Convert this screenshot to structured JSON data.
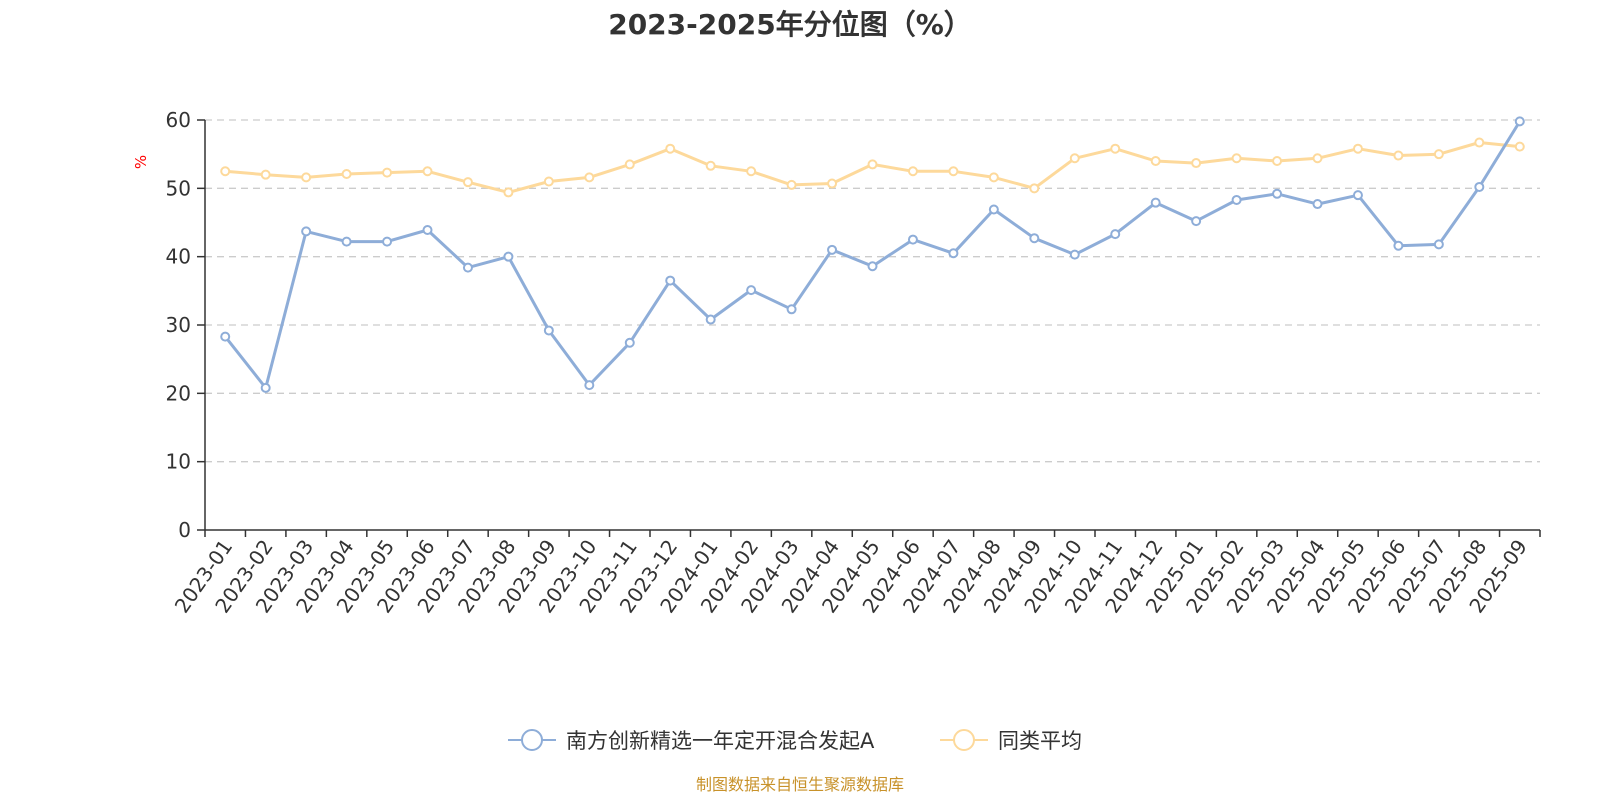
{
  "chart_data": {
    "type": "line",
    "title": "2023-2025年分位图（%）",
    "ylabel": "%",
    "xlabel": "",
    "ylim": [
      0,
      60
    ],
    "yticks": [
      0,
      10,
      20,
      30,
      40,
      50,
      60
    ],
    "grid": true,
    "legend_position": "bottom-center",
    "categories": [
      "2023-01",
      "2023-02",
      "2023-03",
      "2023-04",
      "2023-05",
      "2023-06",
      "2023-07",
      "2023-08",
      "2023-09",
      "2023-10",
      "2023-11",
      "2023-12",
      "2024-01",
      "2024-02",
      "2024-03",
      "2024-04",
      "2024-05",
      "2024-06",
      "2024-07",
      "2024-08",
      "2024-09",
      "2024-10",
      "2024-11",
      "2024-12",
      "2025-01",
      "2025-02",
      "2025-03",
      "2025-04",
      "2025-05",
      "2025-06",
      "2025-07",
      "2025-08",
      "2025-09"
    ],
    "series": [
      {
        "name": "南方创新精选一年定开混合发起A",
        "color": "#8eadd8",
        "values": [
          28.3,
          20.8,
          43.7,
          42.2,
          42.2,
          43.9,
          38.4,
          40.0,
          29.2,
          21.2,
          27.4,
          36.5,
          30.8,
          35.1,
          32.3,
          41.0,
          38.6,
          42.5,
          40.5,
          46.9,
          42.7,
          40.3,
          43.3,
          47.9,
          45.2,
          48.3,
          49.2,
          47.7,
          49.0,
          41.6,
          41.8,
          50.2,
          59.8
        ]
      },
      {
        "name": "同类平均",
        "color": "#fdd99b",
        "values": [
          52.5,
          52.0,
          51.6,
          52.1,
          52.3,
          52.5,
          50.9,
          49.4,
          51.0,
          51.6,
          53.5,
          55.8,
          53.3,
          52.5,
          50.5,
          50.7,
          53.5,
          52.5,
          52.5,
          51.6,
          50.0,
          54.4,
          55.8,
          54.0,
          53.7,
          54.4,
          54.0,
          54.4,
          55.8,
          54.8,
          55.0,
          56.7,
          56.1
        ]
      }
    ],
    "source": "制图数据来自恒生聚源数据库"
  }
}
